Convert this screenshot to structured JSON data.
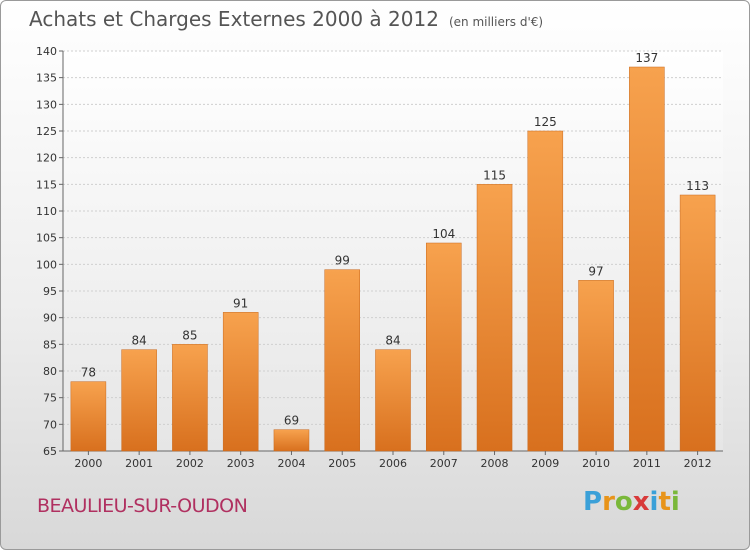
{
  "chart_data": {
    "type": "bar",
    "title": "Achats et Charges Externes 2000 à 2012",
    "subtitle": "(en milliers d'€)",
    "categories": [
      "2000",
      "2001",
      "2002",
      "2003",
      "2004",
      "2005",
      "2006",
      "2007",
      "2008",
      "2009",
      "2010",
      "2011",
      "2012"
    ],
    "values": [
      78,
      84,
      85,
      91,
      69,
      99,
      84,
      104,
      115,
      125,
      97,
      137,
      113
    ],
    "ylim": [
      65,
      140
    ],
    "yticks": [
      65,
      70,
      75,
      80,
      85,
      90,
      95,
      100,
      105,
      110,
      115,
      120,
      125,
      130,
      135,
      140
    ],
    "grid": true,
    "bar_color": "#f0923a"
  },
  "footer": {
    "city": "BEAULIEU-SUR-OUDON",
    "logo": "Proxiti"
  }
}
